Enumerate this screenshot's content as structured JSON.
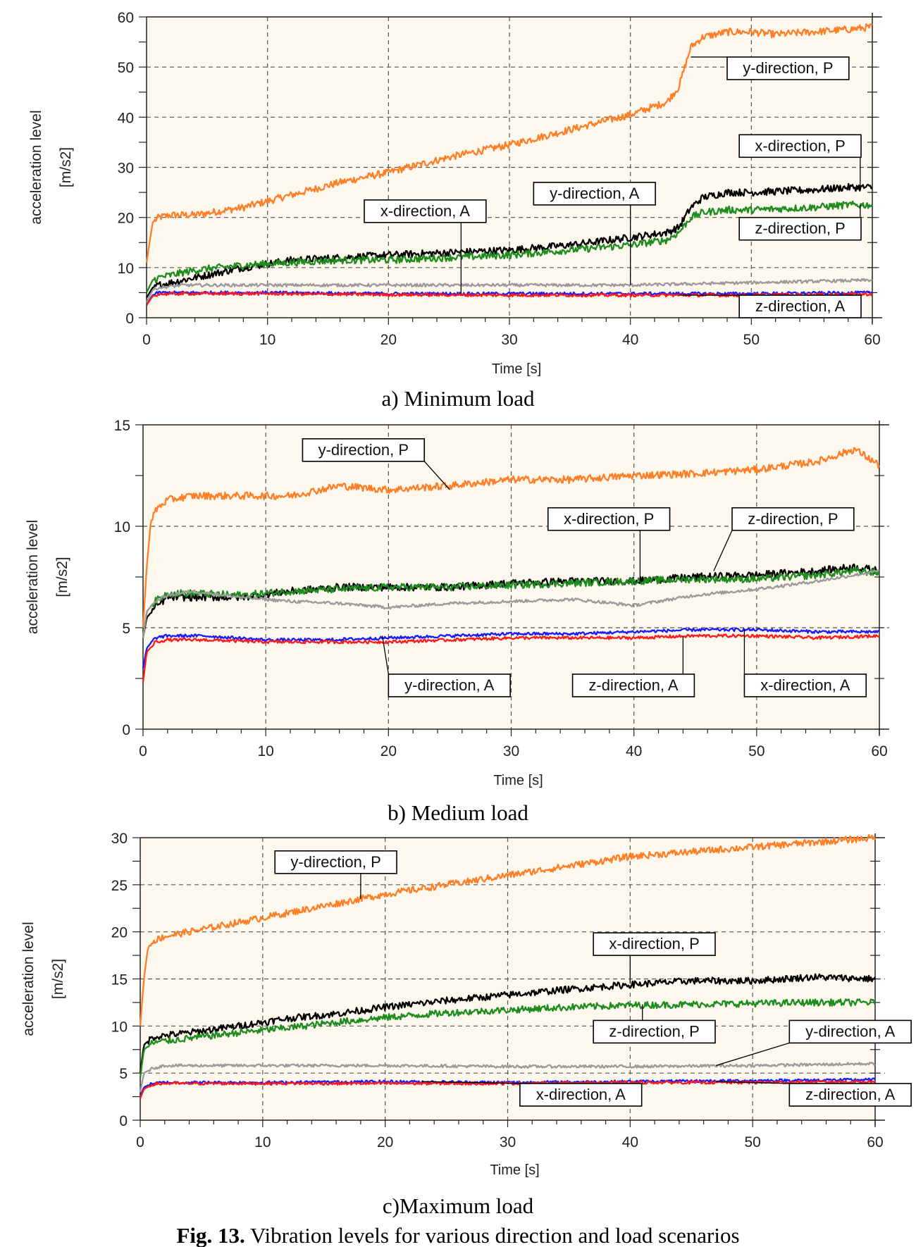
{
  "figure": {
    "caption_bold": "Fig. 13.",
    "caption_text": " Vibration levels for various direction and load scenarios"
  },
  "colors": {
    "plot_background": "#fdf8ee",
    "y-direction, P": "#ff7f27",
    "x-direction, P": "#000000",
    "z-direction, P": "#1e8c1e",
    "y-direction, A": "#9a9a9a",
    "x-direction, A": "#1a1aff",
    "z-direction, A": "#ff1a1a"
  },
  "chart_data": [
    {
      "type": "line",
      "panel_label": "a) Minimum load",
      "xlabel": "Time [s]",
      "ylabel": "acceleration level",
      "yunit": "[m/s2]",
      "xlim": [
        0,
        60
      ],
      "ylim": [
        0,
        60
      ],
      "xticks": [
        0,
        10,
        20,
        30,
        40,
        50,
        60
      ],
      "yticks": [
        0,
        10,
        20,
        30,
        40,
        50,
        60
      ],
      "grid": true,
      "series": [
        {
          "name": "y-direction, P",
          "x": [
            0,
            0.5,
            1,
            2,
            4,
            8,
            12,
            16,
            20,
            25,
            30,
            35,
            40,
            43,
            44,
            44.5,
            45,
            46,
            48,
            50,
            52,
            55,
            58,
            60
          ],
          "y": [
            11,
            19,
            20,
            20.5,
            20.5,
            22,
            24.5,
            27,
            29,
            32,
            34.5,
            37.5,
            40.5,
            43,
            46,
            50,
            54,
            56,
            57,
            57,
            56.5,
            57,
            57.5,
            58
          ]
        },
        {
          "name": "x-direction, P",
          "x": [
            0,
            0.5,
            1,
            2,
            4,
            8,
            12,
            16,
            20,
            25,
            30,
            35,
            40,
            43,
            44,
            45,
            46,
            48,
            50,
            55,
            58,
            60
          ],
          "y": [
            4,
            6,
            6.5,
            7,
            8,
            10,
            11.5,
            12,
            12.5,
            13,
            13.5,
            14.5,
            16,
            17,
            18,
            22,
            24,
            25,
            25,
            25.5,
            26,
            26
          ]
        },
        {
          "name": "z-direction, P",
          "x": [
            0,
            0.5,
            1,
            2,
            4,
            8,
            12,
            16,
            20,
            25,
            30,
            35,
            40,
            43,
            44,
            45,
            46,
            48,
            50,
            55,
            58,
            60
          ],
          "y": [
            5,
            7.5,
            8,
            8.5,
            9.5,
            10.5,
            11,
            11.5,
            11.5,
            12,
            12.5,
            13.5,
            14.5,
            15.5,
            17,
            20,
            21,
            21.5,
            21.5,
            22,
            22.5,
            22.5
          ]
        },
        {
          "name": "y-direction, A",
          "x": [
            0,
            0.5,
            1,
            3,
            10,
            20,
            30,
            40,
            50,
            60
          ],
          "y": [
            3,
            5.5,
            6,
            6.5,
            6.5,
            6.5,
            6.5,
            6.5,
            7,
            7.5
          ]
        },
        {
          "name": "x-direction, A",
          "x": [
            0,
            0.5,
            1,
            3,
            10,
            20,
            30,
            40,
            50,
            60
          ],
          "y": [
            2.5,
            4.5,
            5,
            5,
            5,
            4.8,
            4.8,
            4.8,
            4.8,
            5
          ]
        },
        {
          "name": "z-direction, A",
          "x": [
            0,
            0.5,
            1,
            3,
            10,
            20,
            30,
            40,
            50,
            60
          ],
          "y": [
            2.5,
            4.3,
            4.7,
            4.8,
            4.8,
            4.6,
            4.5,
            4.5,
            4.5,
            4.7
          ]
        }
      ],
      "annotations": [
        {
          "text": "y-direction, P",
          "series": "y-direction, P",
          "point": [
            45,
            52
          ],
          "box": [
            48,
            47.5
          ]
        },
        {
          "text": "x-direction, P",
          "series": "x-direction, P",
          "point": [
            59,
            26
          ],
          "box": [
            49,
            32
          ]
        },
        {
          "text": "z-direction, P",
          "series": "z-direction, P",
          "point": [
            59,
            22.5
          ],
          "box": [
            49,
            15.5
          ]
        },
        {
          "text": "y-direction, A",
          "series": "y-direction, A",
          "point": [
            40,
            6.5
          ],
          "box": [
            32,
            22.5
          ]
        },
        {
          "text": "x-direction, A",
          "series": "x-direction, A",
          "point": [
            26,
            4.8
          ],
          "box": [
            18,
            19
          ]
        },
        {
          "text": "z-direction, A",
          "series": "z-direction, A",
          "point": [
            44,
            4.5
          ],
          "box": [
            49,
            0
          ]
        }
      ]
    },
    {
      "type": "line",
      "panel_label": "b) Medium load",
      "xlabel": "Time [s]",
      "ylabel": "acceleration level",
      "yunit": "[m/s2]",
      "xlim": [
        0,
        60
      ],
      "ylim": [
        0,
        15
      ],
      "xticks": [
        0,
        10,
        20,
        30,
        40,
        50,
        60
      ],
      "yticks": [
        0,
        5,
        10,
        15
      ],
      "grid": true,
      "series": [
        {
          "name": "y-direction, P",
          "x": [
            0,
            0.3,
            0.6,
            1,
            2,
            4,
            8,
            12,
            16,
            20,
            25,
            30,
            35,
            40,
            45,
            50,
            55,
            58,
            60
          ],
          "y": [
            5,
            8,
            10,
            10.8,
            11.3,
            11.5,
            11.5,
            11.5,
            12,
            11.8,
            12,
            12.3,
            12.3,
            12.5,
            12.6,
            12.8,
            13.2,
            13.8,
            13
          ]
        },
        {
          "name": "x-direction, P",
          "x": [
            0,
            0.3,
            1,
            2,
            4,
            8,
            12,
            16,
            20,
            25,
            30,
            35,
            40,
            45,
            50,
            55,
            58,
            60
          ],
          "y": [
            4.5,
            5.5,
            6,
            6.5,
            6.5,
            6.5,
            6.8,
            7,
            7,
            7,
            7.2,
            7.3,
            7.3,
            7.5,
            7.6,
            7.8,
            8,
            7.8
          ]
        },
        {
          "name": "z-direction, P",
          "x": [
            0,
            0.3,
            1,
            2,
            4,
            8,
            12,
            16,
            20,
            25,
            30,
            35,
            40,
            45,
            50,
            55,
            58,
            60
          ],
          "y": [
            4.5,
            5.8,
            6.3,
            6.7,
            6.7,
            6.6,
            6.8,
            6.9,
            7,
            7,
            7.1,
            7.2,
            7.3,
            7.4,
            7.4,
            7.6,
            7.8,
            7.7
          ]
        },
        {
          "name": "y-direction, A",
          "x": [
            0,
            0.3,
            1,
            2,
            4,
            8,
            12,
            16,
            20,
            25,
            30,
            35,
            40,
            45,
            50,
            55,
            60
          ],
          "y": [
            4.5,
            5.8,
            6.3,
            6.6,
            6.8,
            6.5,
            6.3,
            6.2,
            6,
            6.2,
            6.3,
            6.4,
            6.1,
            6.6,
            6.9,
            7.3,
            7.8
          ]
        },
        {
          "name": "x-direction, A",
          "x": [
            0,
            0.3,
            1,
            2,
            5,
            10,
            15,
            20,
            25,
            30,
            35,
            40,
            45,
            50,
            55,
            60
          ],
          "y": [
            3,
            4,
            4.5,
            4.6,
            4.6,
            4.4,
            4.4,
            4.5,
            4.6,
            4.7,
            4.7,
            4.8,
            4.9,
            4.9,
            4.8,
            4.8
          ]
        },
        {
          "name": "z-direction, A",
          "x": [
            0,
            0.3,
            1,
            2,
            5,
            10,
            15,
            20,
            25,
            30,
            35,
            40,
            45,
            50,
            55,
            60
          ],
          "y": [
            2.3,
            3.8,
            4.3,
            4.4,
            4.4,
            4.3,
            4.3,
            4.3,
            4.4,
            4.5,
            4.5,
            4.5,
            4.6,
            4.6,
            4.5,
            4.6
          ]
        }
      ],
      "annotations": [
        {
          "text": "y-direction, P",
          "series": "y-direction, P",
          "point": [
            25,
            11.8
          ],
          "box": [
            13,
            13.2
          ]
        },
        {
          "text": "x-direction, P",
          "series": "x-direction, P",
          "point": [
            40.5,
            7.2
          ],
          "box": [
            33,
            9.8
          ]
        },
        {
          "text": "z-direction, P",
          "series": "z-direction, P",
          "point": [
            46.5,
            7.8
          ],
          "box": [
            48,
            9.8
          ]
        },
        {
          "text": "y-direction, A",
          "series": "y-direction, A",
          "point": [
            19.5,
            4.6
          ],
          "box": [
            20,
            1.6
          ]
        },
        {
          "text": "z-direction, A",
          "series": "z-direction, A",
          "point": [
            44,
            4.6
          ],
          "box": [
            35,
            1.6
          ]
        },
        {
          "text": "x-direction, A",
          "series": "x-direction, A",
          "point": [
            49,
            4.9
          ],
          "box": [
            49,
            1.6
          ]
        }
      ]
    },
    {
      "type": "line",
      "panel_label": "c)Maximum load",
      "xlabel": "Time [s]",
      "ylabel": "acceleration level",
      "yunit": "[m/s2]",
      "xlim": [
        0,
        60
      ],
      "ylim": [
        0,
        30
      ],
      "xticks": [
        0,
        10,
        20,
        30,
        40,
        50,
        60
      ],
      "yticks": [
        0,
        5,
        10,
        15,
        20,
        25,
        30
      ],
      "grid": true,
      "series": [
        {
          "name": "y-direction, P",
          "x": [
            0,
            0.3,
            0.6,
            1,
            2,
            4,
            8,
            12,
            16,
            20,
            25,
            30,
            35,
            40,
            45,
            50,
            55,
            60
          ],
          "y": [
            10,
            15,
            18,
            19,
            19.5,
            20,
            21,
            22,
            23,
            24,
            25,
            26,
            27,
            28,
            28.5,
            29,
            29.5,
            30
          ]
        },
        {
          "name": "x-direction, P",
          "x": [
            0,
            0.3,
            1,
            2,
            4,
            8,
            12,
            16,
            20,
            25,
            30,
            35,
            40,
            45,
            50,
            55,
            60
          ],
          "y": [
            5,
            8,
            8.8,
            9,
            9.3,
            10,
            10.8,
            11.3,
            12,
            12.7,
            13.3,
            13.9,
            14.4,
            14.8,
            14.8,
            15.2,
            15
          ]
        },
        {
          "name": "z-direction, P",
          "x": [
            0,
            0.3,
            1,
            2,
            4,
            8,
            12,
            16,
            20,
            25,
            30,
            35,
            40,
            45,
            50,
            55,
            60
          ],
          "y": [
            4.5,
            7.5,
            8.2,
            8.4,
            8.7,
            9.3,
            9.8,
            10.4,
            10.9,
            11.4,
            11.7,
            12,
            12.2,
            12.3,
            12.4,
            12.5,
            12.5
          ]
        },
        {
          "name": "y-direction, A",
          "x": [
            0,
            0.3,
            1,
            2,
            5,
            10,
            20,
            30,
            40,
            50,
            60
          ],
          "y": [
            3,
            5,
            5.5,
            5.8,
            5.8,
            5.8,
            5.8,
            5.7,
            5.7,
            5.8,
            6
          ]
        },
        {
          "name": "x-direction, A",
          "x": [
            0,
            0.3,
            1,
            2,
            5,
            10,
            20,
            30,
            40,
            50,
            60
          ],
          "y": [
            2.5,
            3.5,
            3.9,
            4,
            4,
            4,
            4.1,
            4,
            4.1,
            4.2,
            4.3
          ]
        },
        {
          "name": "z-direction, A",
          "x": [
            0,
            0.3,
            1,
            2,
            5,
            10,
            20,
            30,
            40,
            50,
            60
          ],
          "y": [
            2.3,
            3.3,
            3.8,
            3.9,
            3.9,
            3.9,
            3.9,
            3.9,
            4,
            4,
            4.1
          ]
        }
      ],
      "annotations": [
        {
          "text": "y-direction, P",
          "series": "y-direction, P",
          "point": [
            18,
            23.5
          ],
          "box": [
            11,
            26.2
          ]
        },
        {
          "text": "x-direction, P",
          "series": "x-direction, P",
          "point": [
            40,
            14.5
          ],
          "box": [
            37,
            17.5
          ]
        },
        {
          "text": "z-direction, P",
          "series": "z-direction, P",
          "point": [
            41,
            12.3
          ],
          "box": [
            37,
            8.2
          ]
        },
        {
          "text": "y-direction, A",
          "series": "y-direction, A",
          "point": [
            47,
            5.8
          ],
          "box": [
            53,
            8.2
          ]
        },
        {
          "text": "x-direction, A",
          "series": "x-direction, A",
          "point": [
            23,
            4.1
          ],
          "box": [
            31,
            1.5
          ]
        },
        {
          "text": "z-direction, A",
          "series": "z-direction, A",
          "point": [
            47,
            4.1
          ],
          "box": [
            53,
            1.5
          ]
        }
      ]
    }
  ]
}
